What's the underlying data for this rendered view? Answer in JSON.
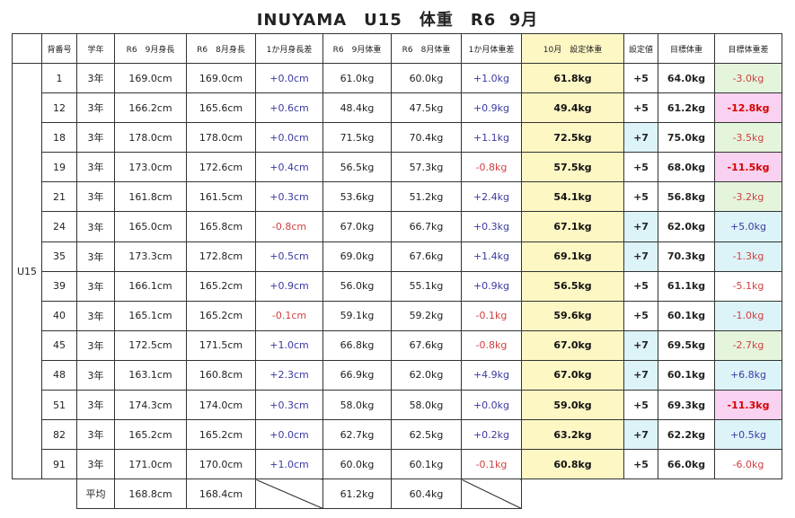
{
  "title": "INUYAMA　U15　体重　R6  9月",
  "headers": [
    "背番号",
    "学年",
    "R6　9月身長",
    "R6　8月身長",
    "1か月身長差",
    "R6　9月体重",
    "R6　8月体重",
    "1か月体重差",
    "10月　設定体重",
    "設定値",
    "目標体重",
    "目標体重差"
  ],
  "team": "U15",
  "rows": [
    {
      "no": "1",
      "grade": "3年",
      "h9": "169.0cm",
      "h8": "169.0cm",
      "hdiff": "+0.0cm",
      "w9": "61.0kg",
      "w8": "60.0kg",
      "wdiff": "+1.0kg",
      "setw": "61.8kg",
      "adj": "+5",
      "target": "64.0kg",
      "tdiff": "-3.0kg"
    },
    {
      "no": "12",
      "grade": "3年",
      "h9": "166.2cm",
      "h8": "165.6cm",
      "hdiff": "+0.6cm",
      "w9": "48.4kg",
      "w8": "47.5kg",
      "wdiff": "+0.9kg",
      "setw": "49.4kg",
      "adj": "+5",
      "target": "61.2kg",
      "tdiff": "-12.8kg"
    },
    {
      "no": "18",
      "grade": "3年",
      "h9": "178.0cm",
      "h8": "178.0cm",
      "hdiff": "+0.0cm",
      "w9": "71.5kg",
      "w8": "70.4kg",
      "wdiff": "+1.1kg",
      "setw": "72.5kg",
      "adj": "+7",
      "target": "75.0kg",
      "tdiff": "-3.5kg"
    },
    {
      "no": "19",
      "grade": "3年",
      "h9": "173.0cm",
      "h8": "172.6cm",
      "hdiff": "+0.4cm",
      "w9": "56.5kg",
      "w8": "57.3kg",
      "wdiff": "-0.8kg",
      "setw": "57.5kg",
      "adj": "+5",
      "target": "68.0kg",
      "tdiff": "-11.5kg"
    },
    {
      "no": "21",
      "grade": "3年",
      "h9": "161.8cm",
      "h8": "161.5cm",
      "hdiff": "+0.3cm",
      "w9": "53.6kg",
      "w8": "51.2kg",
      "wdiff": "+2.4kg",
      "setw": "54.1kg",
      "adj": "+5",
      "target": "56.8kg",
      "tdiff": "-3.2kg"
    },
    {
      "no": "24",
      "grade": "3年",
      "h9": "165.0cm",
      "h8": "165.8cm",
      "hdiff": "-0.8cm",
      "w9": "67.0kg",
      "w8": "66.7kg",
      "wdiff": "+0.3kg",
      "setw": "67.1kg",
      "adj": "+7",
      "target": "62.0kg",
      "tdiff": "+5.0kg"
    },
    {
      "no": "35",
      "grade": "3年",
      "h9": "173.3cm",
      "h8": "172.8cm",
      "hdiff": "+0.5cm",
      "w9": "69.0kg",
      "w8": "67.6kg",
      "wdiff": "+1.4kg",
      "setw": "69.1kg",
      "adj": "+7",
      "target": "70.3kg",
      "tdiff": "-1.3kg"
    },
    {
      "no": "39",
      "grade": "3年",
      "h9": "166.1cm",
      "h8": "165.2cm",
      "hdiff": "+0.9cm",
      "w9": "56.0kg",
      "w8": "55.1kg",
      "wdiff": "+0.9kg",
      "setw": "56.5kg",
      "adj": "+5",
      "target": "61.1kg",
      "tdiff": "-5.1kg"
    },
    {
      "no": "40",
      "grade": "3年",
      "h9": "165.1cm",
      "h8": "165.2cm",
      "hdiff": "-0.1cm",
      "w9": "59.1kg",
      "w8": "59.2kg",
      "wdiff": "-0.1kg",
      "setw": "59.6kg",
      "adj": "+5",
      "target": "60.1kg",
      "tdiff": "-1.0kg"
    },
    {
      "no": "45",
      "grade": "3年",
      "h9": "172.5cm",
      "h8": "171.5cm",
      "hdiff": "+1.0cm",
      "w9": "66.8kg",
      "w8": "67.6kg",
      "wdiff": "-0.8kg",
      "setw": "67.0kg",
      "adj": "+7",
      "target": "69.5kg",
      "tdiff": "-2.7kg"
    },
    {
      "no": "48",
      "grade": "3年",
      "h9": "163.1cm",
      "h8": "160.8cm",
      "hdiff": "+2.3cm",
      "w9": "66.9kg",
      "w8": "62.0kg",
      "wdiff": "+4.9kg",
      "setw": "67.0kg",
      "adj": "+7",
      "target": "60.1kg",
      "tdiff": "+6.8kg"
    },
    {
      "no": "51",
      "grade": "3年",
      "h9": "174.3cm",
      "h8": "174.0cm",
      "hdiff": "+0.3cm",
      "w9": "58.0kg",
      "w8": "58.0kg",
      "wdiff": "+0.0kg",
      "setw": "59.0kg",
      "adj": "+5",
      "target": "69.3kg",
      "tdiff": "-11.3kg"
    },
    {
      "no": "82",
      "grade": "3年",
      "h9": "165.2cm",
      "h8": "165.2cm",
      "hdiff": "+0.0cm",
      "w9": "62.7kg",
      "w8": "62.5kg",
      "wdiff": "+0.2kg",
      "setw": "63.2kg",
      "adj": "+7",
      "target": "62.2kg",
      "tdiff": "+0.5kg"
    },
    {
      "no": "91",
      "grade": "3年",
      "h9": "171.0cm",
      "h8": "170.0cm",
      "hdiff": "+1.0cm",
      "w9": "60.0kg",
      "w8": "60.1kg",
      "wdiff": "-0.1kg",
      "setw": "60.8kg",
      "adj": "+5",
      "target": "66.0kg",
      "tdiff": "-6.0kg"
    }
  ],
  "averages": {
    "label": "平均",
    "h9": "168.8cm",
    "h8": "168.4cm",
    "w9": "61.2kg",
    "w8": "60.4kg"
  },
  "colors": {
    "highlight_yellow": "#fdf7c4",
    "bg_green": "#e4f5dc",
    "bg_blue": "#dcf3f8",
    "bg_pink": "#f8d2f0",
    "positive_text": "#3a3aa0",
    "negative_text": "#d04040",
    "strong_negative_text": "#d60000"
  }
}
